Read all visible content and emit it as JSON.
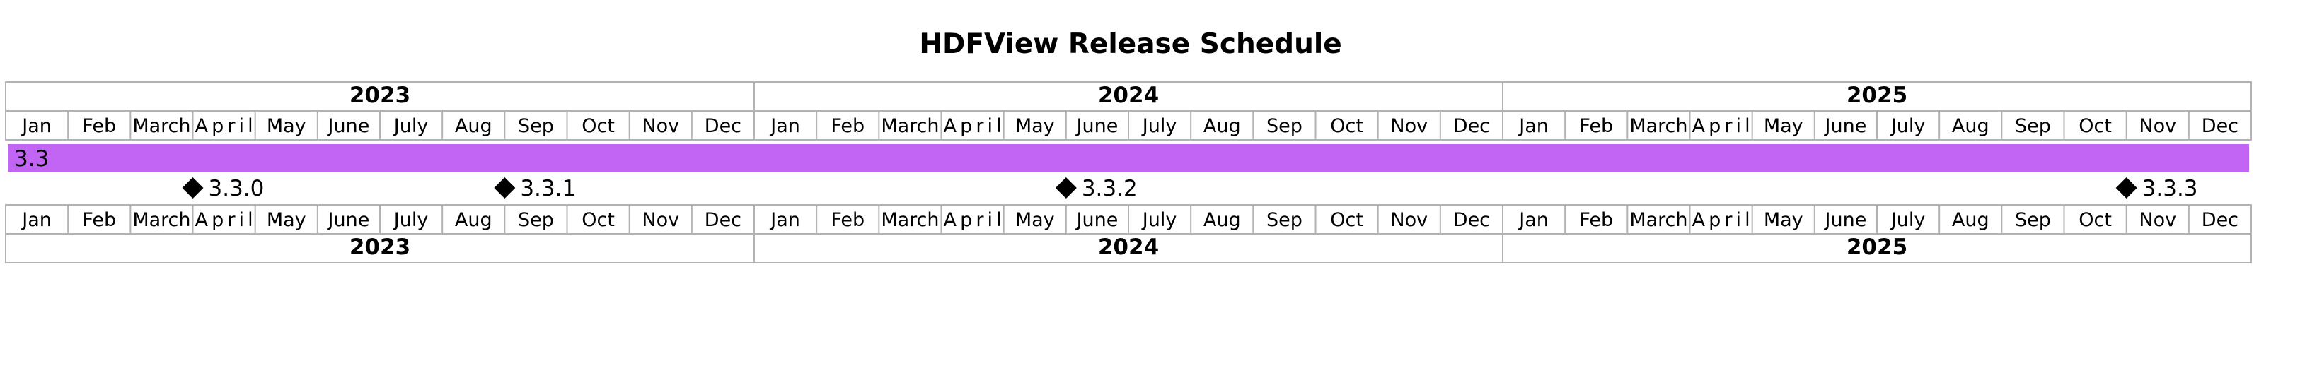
{
  "title": "HDFView Release Schedule",
  "years": [
    "2023",
    "2024",
    "2025"
  ],
  "months": [
    "Jan",
    "Feb",
    "March",
    "April",
    "May",
    "June",
    "July",
    "Aug",
    "Sep",
    "Oct",
    "Nov",
    "Dec"
  ],
  "bar": {
    "label": "3.3",
    "start": "2023-01",
    "end": "2025-12",
    "color": "#c265f5"
  },
  "milestones": [
    {
      "label": "3.3.0",
      "date": "2023-04"
    },
    {
      "label": "3.3.1",
      "date": "2023-09"
    },
    {
      "label": "3.3.2",
      "date": "2024-06"
    },
    {
      "label": "3.3.3",
      "date": "2025-11"
    }
  ],
  "colors": {
    "grid": "#b3b3b3",
    "milestone": "#000000"
  }
}
